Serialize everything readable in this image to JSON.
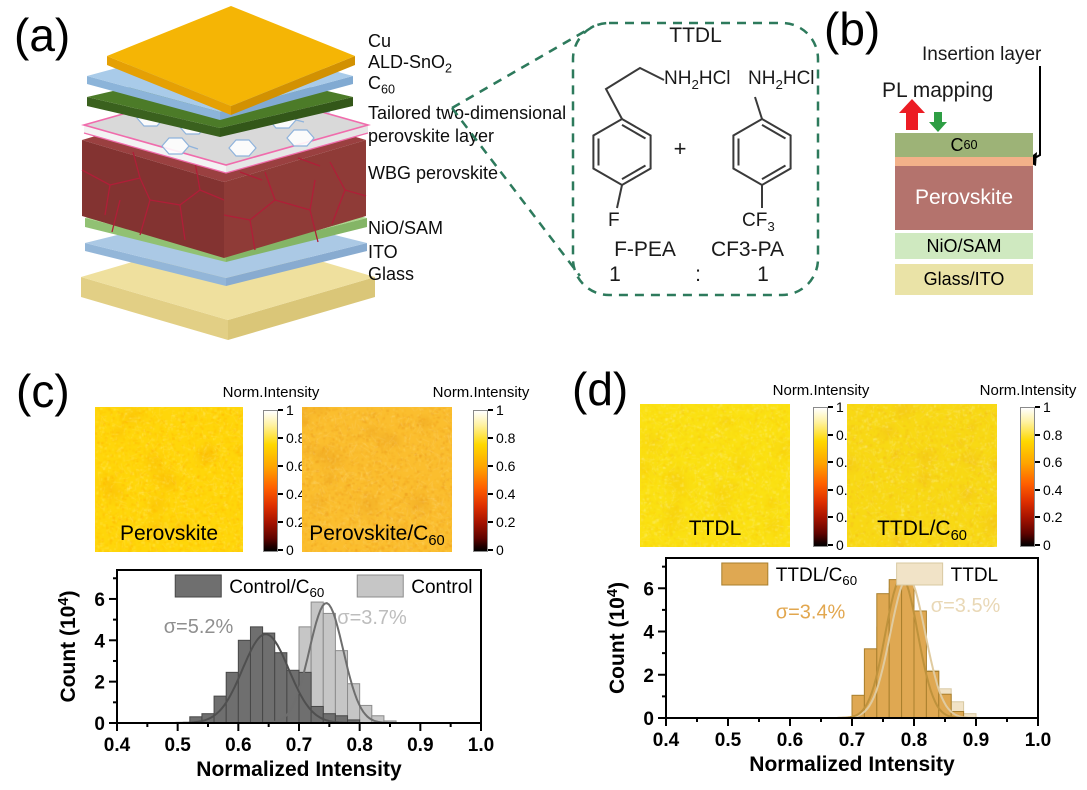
{
  "figure": {
    "panel_a": {
      "label": "(a)",
      "layer_labels": [
        {
          "pre": "Cu",
          "sub": "",
          "post": ""
        },
        {
          "pre": "ALD-SnO",
          "sub": "2",
          "post": ""
        },
        {
          "pre": "C",
          "sub": "60",
          "post": ""
        },
        {
          "pre": "Tailored two-dimensional",
          "sub": "",
          "post": ""
        },
        {
          "pre": "perovskite layer",
          "sub": "",
          "post": ""
        },
        {
          "pre": "WBG perovskite",
          "sub": "",
          "post": ""
        },
        {
          "pre": "NiO/SAM",
          "sub": "",
          "post": ""
        },
        {
          "pre": "ITO",
          "sub": "",
          "post": ""
        },
        {
          "pre": "Glass",
          "sub": "",
          "post": ""
        }
      ],
      "ttdl": {
        "title": "TTDL",
        "box_color": "#2D7A5C",
        "amine_left": {
          "pre": "NH",
          "sub": "2",
          "post": "HCl"
        },
        "amine_right": {
          "pre": "NH",
          "sub": "2",
          "post": "HCl"
        },
        "plus": "+",
        "f_label": "F",
        "cf3_label": {
          "pre": "CF",
          "sub": "3",
          "post": ""
        },
        "name_left": "F-PEA",
        "name_right": "CF3-PA",
        "ratio_left": "1",
        "ratio_colon": ":",
        "ratio_right": "1"
      }
    },
    "panel_b": {
      "label": "(b)",
      "insertion_label": "Insertion layer",
      "pl_label": "PL mapping",
      "up_arrow_color": "#EC1C24",
      "down_arrow_color": "#2E9E44",
      "layers": [
        {
          "pre": "C",
          "sub": "60",
          "post": "",
          "color": "#9DB377"
        },
        {
          "pre": "Perovskite",
          "sub": "",
          "post": "",
          "color": "#B4736D"
        },
        {
          "pre": "NiO/SAM",
          "sub": "",
          "post": "",
          "color": "#CFE9C0"
        },
        {
          "pre": "Glass/ITO",
          "sub": "",
          "post": "",
          "color": "#EAE3A7"
        }
      ],
      "insertion_layer_color": "#F2B189"
    },
    "panel_c": {
      "label": "(c)",
      "colorbar_title": "Norm.Intensity",
      "colorbar_ticks": [
        "1",
        "0.8",
        "0.6",
        "0.4",
        "0.2",
        "0"
      ],
      "maps": [
        {
          "caption": {
            "pre": "Perovskite",
            "sub": "",
            "post": ""
          },
          "base": "#FFD60A",
          "speckles": [
            "#FFC400",
            "#FFAA00",
            "#FFF176"
          ],
          "blob": "#F59D00"
        },
        {
          "caption": {
            "pre": "Perovskite/C",
            "sub": "60",
            "post": ""
          },
          "base": "#FBBE2E",
          "speckles": [
            "#F5A31C",
            "#E8931A",
            "#FFD96A"
          ],
          "blob": "#DE8A14"
        }
      ]
    },
    "panel_d": {
      "label": "(d)",
      "colorbar_title": "Norm.Intensity",
      "colorbar_ticks": [
        "1",
        "0.8",
        "0.6",
        "0.4",
        "0.2",
        "0"
      ],
      "maps": [
        {
          "caption": {
            "pre": "TTDL",
            "sub": "",
            "post": ""
          },
          "base": "#FBE112",
          "speckles": [
            "#FFD000",
            "#FFF59D",
            "#F6C81A"
          ],
          "blob": "#F2B807"
        },
        {
          "caption": {
            "pre": "TTDL/C",
            "sub": "60",
            "post": ""
          },
          "base": "#F8D914",
          "speckles": [
            "#F4B51C",
            "#FFF59D",
            "#FFCF29"
          ],
          "blob": "#EF9F1E"
        }
      ]
    }
  },
  "chart_data": [
    {
      "type": "histogram",
      "xlabel": "Normalized Intensity",
      "ylabel": {
        "pre": "Count (10",
        "sup": "4",
        "post": ")"
      },
      "xlim": [
        0.4,
        1.0
      ],
      "ylim": [
        0,
        7.4
      ],
      "xticks": [
        0.4,
        0.5,
        0.6,
        0.7,
        0.8,
        0.9,
        1.0
      ],
      "xtick_labels": [
        "0.4",
        "0.5",
        "0.6",
        "0.7",
        "0.8",
        "0.9",
        "1.0"
      ],
      "yticks": [
        0,
        2,
        4,
        6
      ],
      "ytick_labels": [
        "0",
        "2",
        "4",
        "6"
      ],
      "bin_width": 0.02,
      "legend_fractions": [
        0.16,
        0.66
      ],
      "series": [
        {
          "name": {
            "pre": "Control/C",
            "sub": "60"
          },
          "fill": "#6F6F6F",
          "edge": "#474747",
          "curve_color": "#4F4F4F",
          "sigma": {
            "text": "σ=5.2%",
            "x": 0.477,
            "y": 4.35,
            "color": "#8F8F8F"
          },
          "bins_start": 0.52,
          "values": [
            0.3,
            0.45,
            1.3,
            2.45,
            4.0,
            4.65,
            4.35,
            3.4,
            2.55,
            2.45,
            0.8,
            0.45,
            0.35,
            0.15
          ],
          "gauss": {
            "mu": 0.645,
            "amp": 4.3,
            "sd": 0.038
          }
        },
        {
          "name": {
            "pre": "Control",
            "sub": ""
          },
          "fill": "#C6C6C6",
          "edge": "#8C8C8C",
          "curve_color": "#6E6E6E",
          "sigma": {
            "text": "σ=3.7%",
            "x": 0.763,
            "y": 4.8,
            "color": "#BDBDBD"
          },
          "bins_start": 0.64,
          "values": [
            0.3,
            0.9,
            2.4,
            4.65,
            5.85,
            5.3,
            3.5,
            1.9,
            0.85,
            0.35,
            0.1
          ],
          "gauss": {
            "mu": 0.745,
            "amp": 5.8,
            "sd": 0.028
          }
        }
      ]
    },
    {
      "type": "histogram",
      "xlabel": "Normalized Intensity",
      "ylabel": {
        "pre": "Count (10",
        "sup": "4",
        "post": ")"
      },
      "xlim": [
        0.4,
        1.0
      ],
      "ylim": [
        0,
        7.4
      ],
      "xticks": [
        0.4,
        0.5,
        0.6,
        0.7,
        0.8,
        0.9,
        1.0
      ],
      "xtick_labels": [
        "0.4",
        "0.5",
        "0.6",
        "0.7",
        "0.8",
        "0.9",
        "1.0"
      ],
      "yticks": [
        0,
        2,
        4,
        6
      ],
      "ytick_labels": [
        "0",
        "2",
        "4",
        "6"
      ],
      "bin_width": 0.02,
      "legend_fractions": [
        0.15,
        0.62
      ],
      "series": [
        {
          "name": {
            "pre": "TTDL/C",
            "sub": "60"
          },
          "fill": "#DFA852",
          "edge": "#A87F2E",
          "curve_color": "#BE923C",
          "sigma": {
            "text": "σ=3.4%",
            "x": 0.577,
            "y": 4.6,
            "color": "#E2A74F"
          },
          "bins_start": 0.7,
          "values": [
            1.05,
            3.2,
            5.75,
            6.4,
            6.25,
            4.95,
            2.15,
            1.1,
            0.3
          ],
          "gauss": {
            "mu": 0.78,
            "amp": 6.5,
            "sd": 0.026
          }
        },
        {
          "name": {
            "pre": "TTDL",
            "sub": ""
          },
          "fill": "#F1E3C7",
          "edge": "#D8C8A2",
          "curve_color": "#E0CBA0",
          "sigma": {
            "text": "σ=3.5%",
            "x": 0.827,
            "y": 4.9,
            "color": "#E9D8B6"
          },
          "bins_start": 0.7,
          "values": [
            0.4,
            1.8,
            4.2,
            6.0,
            6.3,
            4.2,
            2.2,
            1.35,
            0.75,
            0.2
          ],
          "gauss": {
            "mu": 0.79,
            "amp": 6.5,
            "sd": 0.028
          }
        }
      ]
    }
  ]
}
